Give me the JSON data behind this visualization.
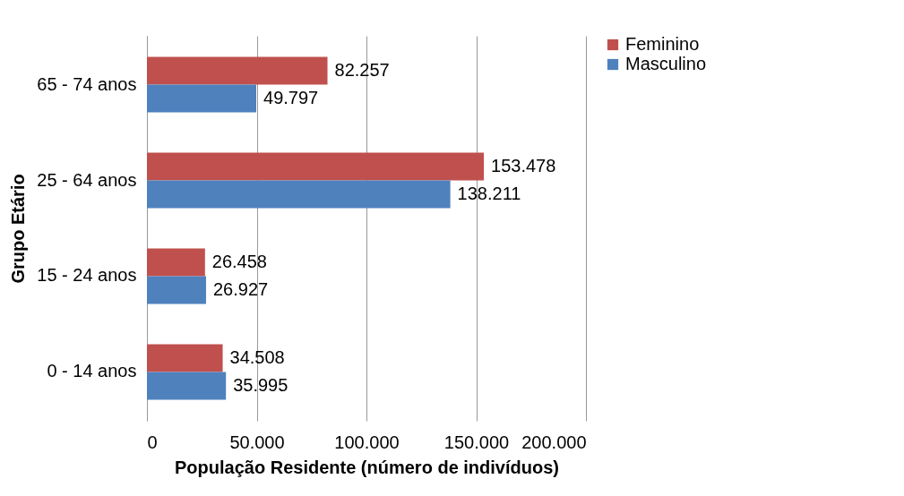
{
  "chart_data": {
    "type": "bar",
    "orientation": "horizontal",
    "xlabel": "População Residente (número de indivíduos)",
    "ylabel": "Grupo Etário",
    "categories": [
      "65 - 74 anos",
      "25 - 64 anos",
      "15 - 24 anos",
      "0 - 14 anos"
    ],
    "series": [
      {
        "name": "Feminino",
        "color": "#c0504d",
        "values": [
          82257,
          153478,
          26458,
          34508
        ],
        "value_labels": [
          "82.257",
          "153.478",
          "26.458",
          "34.508"
        ]
      },
      {
        "name": "Masculino",
        "color": "#4f81bd",
        "values": [
          49797,
          138211,
          26927,
          35995
        ],
        "value_labels": [
          "49.797",
          "138.211",
          "26.927",
          "35.995"
        ]
      }
    ],
    "xlim": [
      0,
      200000
    ],
    "xticks": [
      0,
      {
        "value": 50000,
        "label": "50.000"
      },
      {
        "value": 100000,
        "label": "100.000"
      },
      {
        "value": 150000,
        "label": "150.000"
      },
      {
        "value": 200000,
        "label": "200.000"
      }
    ],
    "grid": "x",
    "legend": "right"
  }
}
